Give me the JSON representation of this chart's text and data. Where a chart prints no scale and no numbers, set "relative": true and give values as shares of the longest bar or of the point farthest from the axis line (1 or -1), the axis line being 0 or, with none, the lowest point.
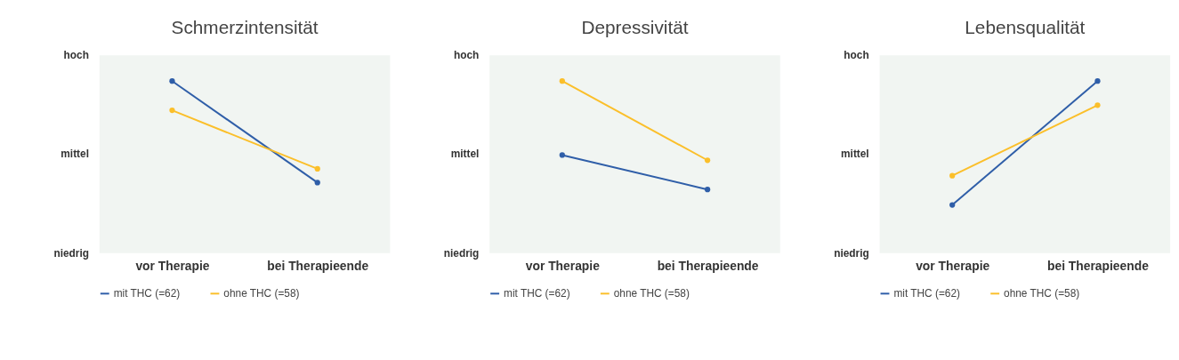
{
  "chart_data": [
    {
      "type": "line",
      "title": "Schmerzintensität",
      "categories": [
        "vor Therapie",
        "bei Therapieende"
      ],
      "relative": true,
      "series": [
        {
          "name": "mit THC (=62)",
          "color": "#2f5ea8",
          "values": [
            1,
            0.41
          ]
        },
        {
          "name": "ohne THC (=58)",
          "color": "#fbbf2a",
          "values": [
            0.83,
            0.49
          ]
        }
      ],
      "annotations": [
        "hoch",
        "mittel",
        "niedrig"
      ],
      "legend": "bottom",
      "marker": "circle",
      "line_style": "solid"
    },
    {
      "type": "line",
      "title": "Depressivität",
      "categories": [
        "vor Therapie",
        "bei Therapieende"
      ],
      "relative": true,
      "series": [
        {
          "name": "mit THC (=62)",
          "color": "#2f5ea8",
          "values": [
            0.57,
            0.37
          ]
        },
        {
          "name": "ohne THC (=58)",
          "color": "#fbbf2a",
          "values": [
            1,
            0.54
          ]
        }
      ],
      "annotations": [
        "hoch",
        "mittel",
        "niedrig"
      ],
      "legend": "bottom",
      "marker": "circle",
      "line_style": "solid"
    },
    {
      "type": "line",
      "title": "Lebensqualität",
      "categories": [
        "vor Therapie",
        "bei Therapieende"
      ],
      "relative": true,
      "series": [
        {
          "name": "mit THC (=62)",
          "color": "#2f5ea8",
          "values": [
            0.28,
            1
          ]
        },
        {
          "name": "ohne THC (=58)",
          "color": "#fbbf2a",
          "values": [
            0.45,
            0.86
          ]
        }
      ],
      "annotations": [
        "hoch",
        "mittel",
        "niedrig"
      ],
      "legend": "bottom",
      "marker": "circle",
      "line_style": "solid"
    }
  ]
}
